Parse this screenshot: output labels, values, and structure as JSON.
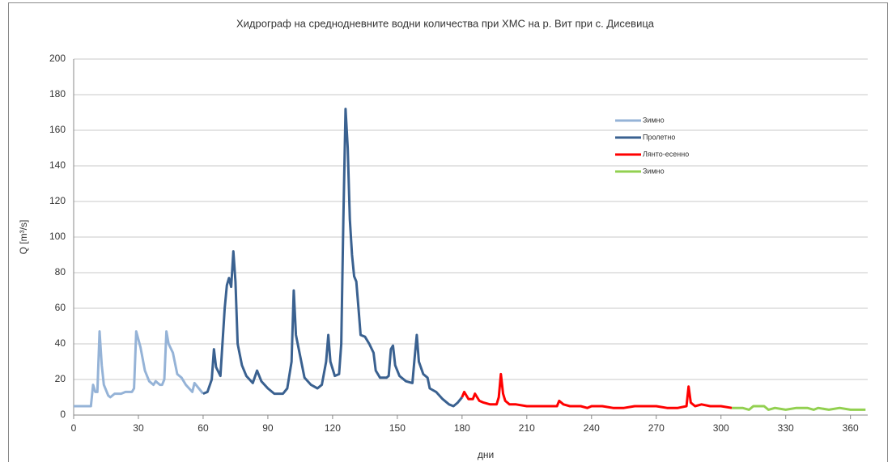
{
  "chart_data": {
    "type": "line",
    "title": "Хидрограф на среднодневните водни количества при ХМС на р. Вит при с. Дисевица",
    "xlabel": "дни",
    "ylabel": "Q [m³/s]",
    "xlim": [
      0,
      368
    ],
    "ylim": [
      0,
      200
    ],
    "xticks": [
      0,
      30,
      60,
      90,
      120,
      150,
      180,
      210,
      240,
      270,
      300,
      330,
      360
    ],
    "yticks": [
      0,
      20,
      40,
      60,
      80,
      100,
      120,
      140,
      160,
      180,
      200
    ],
    "grid": true,
    "legend": "upper right",
    "series": [
      {
        "name": "Зимно",
        "color": "#95b3d7",
        "x": [
          0,
          8,
          9,
          10,
          11,
          12,
          13,
          14,
          16,
          17,
          19,
          22,
          24,
          27,
          28,
          29,
          31,
          33,
          35,
          37,
          38,
          40,
          41,
          42,
          43,
          44,
          46,
          48,
          50,
          52,
          55,
          56,
          58,
          60
        ],
        "values": [
          5,
          5,
          17,
          13,
          13,
          47,
          28,
          17,
          11,
          10,
          12,
          12,
          13,
          13,
          15,
          47,
          38,
          25,
          19,
          17,
          19,
          17,
          17,
          20,
          47,
          40,
          35,
          23,
          21,
          17,
          13,
          18,
          15,
          12
        ]
      },
      {
        "name": "Пролетно",
        "color": "#3a6190",
        "x": [
          60,
          62,
          64,
          65,
          66,
          68,
          70,
          71,
          72,
          73,
          74,
          75,
          76,
          78,
          80,
          83,
          85,
          87,
          90,
          93,
          97,
          99,
          101,
          102,
          103,
          105,
          107,
          110,
          113,
          115,
          117,
          118,
          119,
          121,
          123,
          124,
          125,
          126,
          127,
          128,
          129,
          130,
          131,
          132,
          133,
          135,
          137,
          139,
          140,
          142,
          145,
          146,
          147,
          148,
          149,
          151,
          154,
          157,
          158,
          159,
          160,
          162,
          164,
          165,
          168,
          171,
          174,
          176,
          178,
          180
        ],
        "values": [
          12,
          13,
          20,
          37,
          27,
          22,
          60,
          73,
          77,
          72,
          92,
          75,
          40,
          28,
          22,
          18,
          25,
          19,
          15,
          12,
          12,
          15,
          30,
          70,
          45,
          33,
          21,
          17,
          15,
          17,
          30,
          45,
          30,
          22,
          23,
          40,
          110,
          172,
          150,
          110,
          90,
          78,
          75,
          60,
          45,
          44,
          40,
          35,
          25,
          21,
          21,
          22,
          37,
          39,
          28,
          22,
          19,
          18,
          32,
          45,
          30,
          23,
          21,
          15,
          13,
          9,
          6,
          5,
          7,
          10
        ]
      },
      {
        "name": "Лянто-есенно",
        "color": "#ff0000",
        "x": [
          180,
          181,
          183,
          185,
          186,
          188,
          190,
          193,
          196,
          197,
          198,
          199,
          200,
          202,
          205,
          210,
          215,
          220,
          224,
          225,
          227,
          230,
          235,
          238,
          240,
          245,
          250,
          255,
          260,
          265,
          270,
          275,
          280,
          284,
          285,
          286,
          288,
          291,
          295,
          300,
          305
        ],
        "values": [
          10,
          13,
          9,
          9,
          12,
          8,
          7,
          6,
          6,
          10,
          23,
          12,
          8,
          6,
          6,
          5,
          5,
          5,
          5,
          8,
          6,
          5,
          5,
          4,
          5,
          5,
          4,
          4,
          5,
          5,
          5,
          4,
          4,
          5,
          16,
          7,
          5,
          6,
          5,
          5,
          4
        ]
      },
      {
        "name": "Зимно",
        "color": "#92d050",
        "x": [
          305,
          310,
          313,
          315,
          320,
          322,
          325,
          330,
          335,
          340,
          343,
          345,
          350,
          355,
          360,
          367
        ],
        "values": [
          4,
          4,
          3,
          5,
          5,
          3,
          4,
          3,
          4,
          4,
          3,
          4,
          3,
          4,
          3,
          3
        ]
      }
    ]
  }
}
